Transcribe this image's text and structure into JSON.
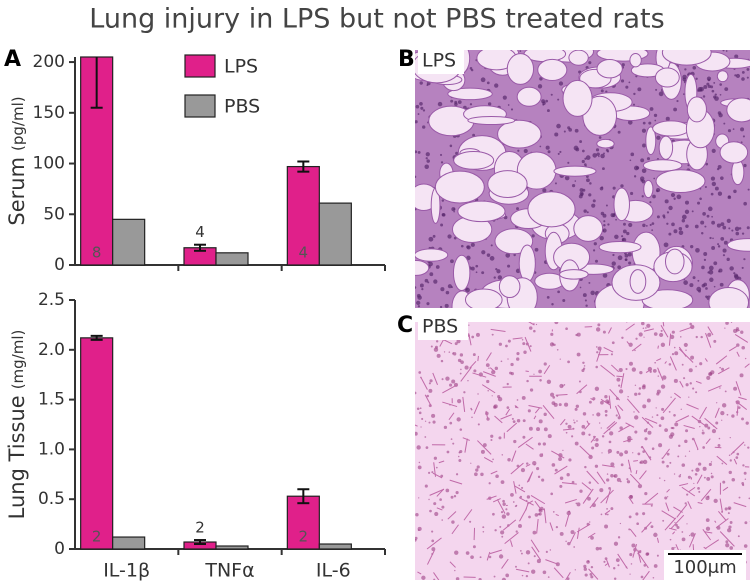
{
  "title": "Lung injury in LPS but not PBS treated rats",
  "panels": {
    "a": "A",
    "b": "B",
    "b_label": "LPS",
    "c": "C",
    "c_label": "PBS",
    "scale_bar": "100μm"
  },
  "chart_data": [
    {
      "type": "bar",
      "ylabel": "Serum",
      "yunit": "(pg/ml)",
      "categories": [
        null,
        null,
        null
      ],
      "ylim": [
        0,
        205
      ],
      "yticks": [
        0,
        50,
        100,
        150,
        200
      ],
      "legend": "top-center",
      "series": [
        {
          "name": "LPS",
          "color": "#e0208a",
          "values": [
            205,
            17,
            97
          ],
          "errors": [
            50,
            3,
            5
          ],
          "n": [
            8,
            4,
            4
          ]
        },
        {
          "name": "PBS",
          "color": "#999999",
          "values": [
            45,
            12,
            61
          ]
        }
      ]
    },
    {
      "type": "bar",
      "ylabel": "Lung Tissue",
      "yunit": "(mg/ml)",
      "categories": [
        "IL-1β",
        "TNFα",
        "IL-6"
      ],
      "ylim": [
        0,
        2.5
      ],
      "yticks": [
        0,
        0.5,
        {
          "value": 1,
          "label": "1.0"
        },
        1.5,
        {
          "value": 2,
          "label": "2.0"
        },
        2.5
      ],
      "series": [
        {
          "color": "#e0208a",
          "values": [
            2.12,
            0.07,
            0.53
          ],
          "errors": [
            0.02,
            0.02,
            0.07
          ],
          "n": [
            2,
            2,
            2
          ]
        },
        {
          "color": "#999999",
          "values": [
            0.12,
            0.03,
            0.05
          ]
        }
      ]
    }
  ]
}
